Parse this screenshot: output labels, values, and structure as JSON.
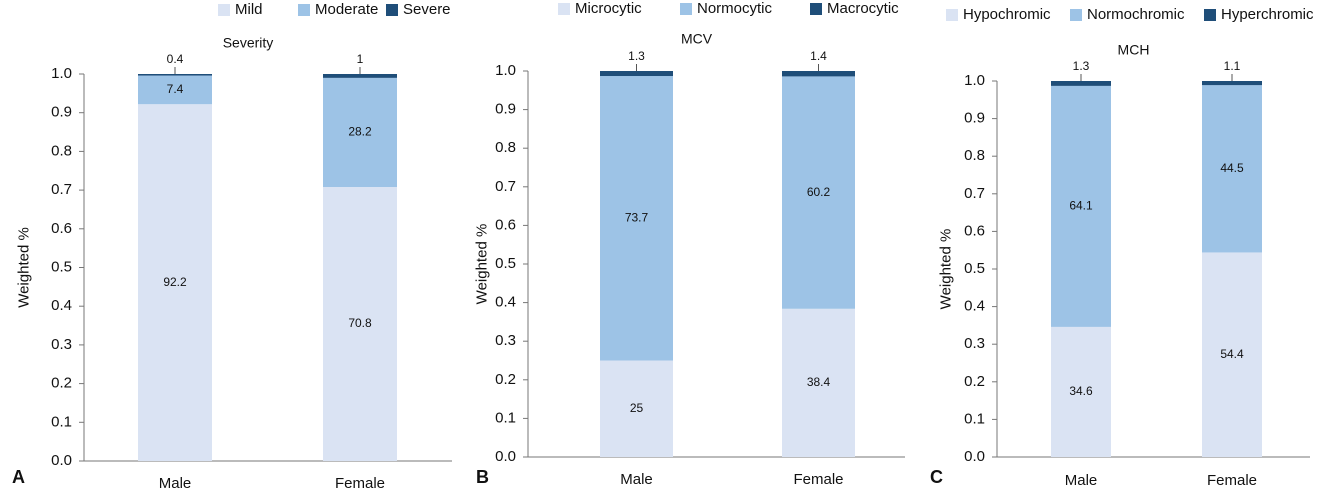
{
  "chart_data": [
    {
      "type": "bar",
      "stacked": true,
      "panel_label": "A",
      "title": "Severity",
      "ylabel": "Weighted %",
      "categories": [
        "Male",
        "Female"
      ],
      "series": [
        {
          "name": "Mild",
          "color": "#dae3f3",
          "values": [
            0.922,
            0.708
          ],
          "value_labels": [
            "92.2",
            "70.8"
          ]
        },
        {
          "name": "Moderate",
          "color": "#9dc3e6",
          "values": [
            0.074,
            0.282
          ],
          "value_labels": [
            "7.4",
            "28.2"
          ]
        },
        {
          "name": "Severe",
          "color": "#1f4e79",
          "values": [
            0.004,
            0.01
          ],
          "value_labels": [
            "0.4",
            "1"
          ]
        }
      ],
      "ylim": [
        0,
        1
      ],
      "yticks": [
        {
          "value": 0,
          "label": "0.0"
        },
        0.1,
        0.2,
        0.3,
        0.4,
        0.5,
        0.6,
        0.7,
        0.8,
        0.9,
        {
          "value": 1,
          "label": "1.0"
        }
      ],
      "legend": "top"
    },
    {
      "type": "bar",
      "stacked": true,
      "panel_label": "B",
      "title": "MCV",
      "ylabel": "Weighted %",
      "categories": [
        "Male",
        "Female"
      ],
      "series": [
        {
          "name": "Microcytic",
          "color": "#dae3f3",
          "values": [
            0.25,
            0.384
          ],
          "value_labels": [
            "25",
            "38.4"
          ]
        },
        {
          "name": "Normocytic",
          "color": "#9dc3e6",
          "values": [
            0.737,
            0.602
          ],
          "value_labels": [
            "73.7",
            "60.2"
          ]
        },
        {
          "name": "Macrocytic",
          "color": "#1f4e79",
          "values": [
            0.013,
            0.014
          ],
          "value_labels": [
            "1.3",
            "1.4"
          ]
        }
      ],
      "ylim": [
        0,
        1
      ],
      "yticks": [
        {
          "value": 0,
          "label": "0.0"
        },
        0.1,
        0.2,
        0.3,
        0.4,
        0.5,
        0.6,
        0.7,
        0.8,
        0.9,
        {
          "value": 1,
          "label": "1.0"
        }
      ],
      "legend": "top"
    },
    {
      "type": "bar",
      "stacked": true,
      "panel_label": "C",
      "title": "MCH",
      "ylabel": "Weighted %",
      "categories": [
        "Male",
        "Female"
      ],
      "series": [
        {
          "name": "Hypochromic",
          "color": "#dae3f3",
          "values": [
            0.346,
            0.544
          ],
          "value_labels": [
            "34.6",
            "54.4"
          ]
        },
        {
          "name": "Normochromic",
          "color": "#9dc3e6",
          "values": [
            0.641,
            0.445
          ],
          "value_labels": [
            "64.1",
            "44.5"
          ]
        },
        {
          "name": "Hyperchromic",
          "color": "#1f4e79",
          "values": [
            0.013,
            0.011
          ],
          "value_labels": [
            "1.3",
            "1.1"
          ]
        }
      ],
      "ylim": [
        0,
        1
      ],
      "yticks": [
        {
          "value": 0,
          "label": "0.0"
        },
        0.1,
        0.2,
        0.3,
        0.4,
        0.5,
        0.6,
        0.7,
        0.8,
        0.9,
        {
          "value": 1,
          "label": "1.0"
        }
      ],
      "legend": "top"
    }
  ]
}
